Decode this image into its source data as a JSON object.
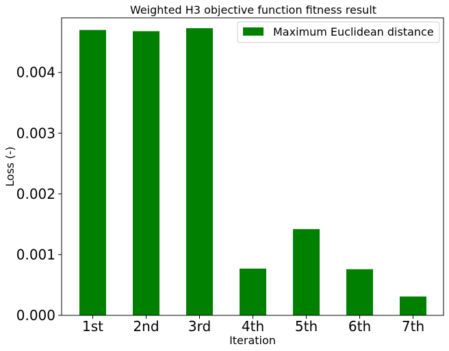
{
  "chart_data": {
    "type": "bar",
    "title": "Weighted H3 objective function fitness result",
    "xlabel": "Iteration",
    "ylabel": "Loss (-)",
    "categories": [
      "1st",
      "2nd",
      "3rd",
      "4th",
      "5th",
      "6th",
      "7th"
    ],
    "series": [
      {
        "name": "Maximum Euclidean distance",
        "color": "#008000",
        "values": [
          0.0047,
          0.00468,
          0.00473,
          0.00077,
          0.00142,
          0.00076,
          0.00031
        ]
      }
    ],
    "ylim": [
      0,
      0.0049
    ],
    "yticks": [
      "0.000",
      "0.001",
      "0.002",
      "0.003",
      "0.004"
    ],
    "ytick_values": [
      0,
      0.001,
      0.002,
      0.003,
      0.004
    ],
    "grid": false,
    "legend": "top-right"
  }
}
